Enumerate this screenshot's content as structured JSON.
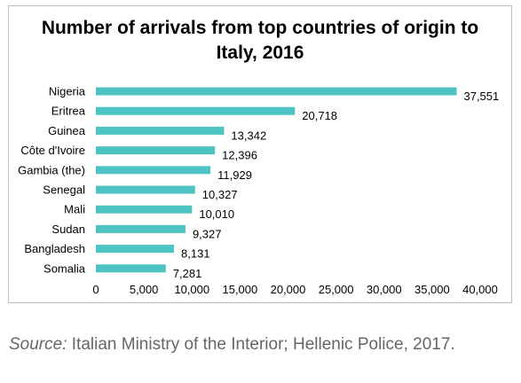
{
  "chart_data": {
    "type": "bar",
    "orientation": "horizontal",
    "title_lines": [
      "Number of arrivals from top countries of origin to",
      "Italy, 2016"
    ],
    "categories": [
      "Nigeria",
      "Eritrea",
      "Guinea",
      "Côte d'Ivoire",
      "Gambia (the)",
      "Senegal",
      "Mali",
      "Sudan",
      "Bangladesh",
      "Somalia"
    ],
    "values": [
      37551,
      20718,
      13342,
      12396,
      11929,
      10327,
      10010,
      9327,
      8131,
      7281
    ],
    "value_labels": [
      "37,551",
      "20,718",
      "13,342",
      "12,396",
      "11,929",
      "10,327",
      "10,010",
      "9,327",
      "8,131",
      "7,281"
    ],
    "xlim": [
      0,
      40000
    ],
    "x_ticks": [
      0,
      5000,
      10000,
      15000,
      20000,
      25000,
      30000,
      35000,
      40000
    ],
    "x_tick_labels": [
      "0",
      "5,000",
      "10,000",
      "15,000",
      "20,000",
      "25,000",
      "30,000",
      "35,000",
      "40,000"
    ],
    "grid": false,
    "legend": "none",
    "bar_color": "#4dc3c3"
  },
  "source": {
    "label": "Source:",
    "text": "Italian Ministry of the Interior; Hellenic Police, 2017."
  }
}
